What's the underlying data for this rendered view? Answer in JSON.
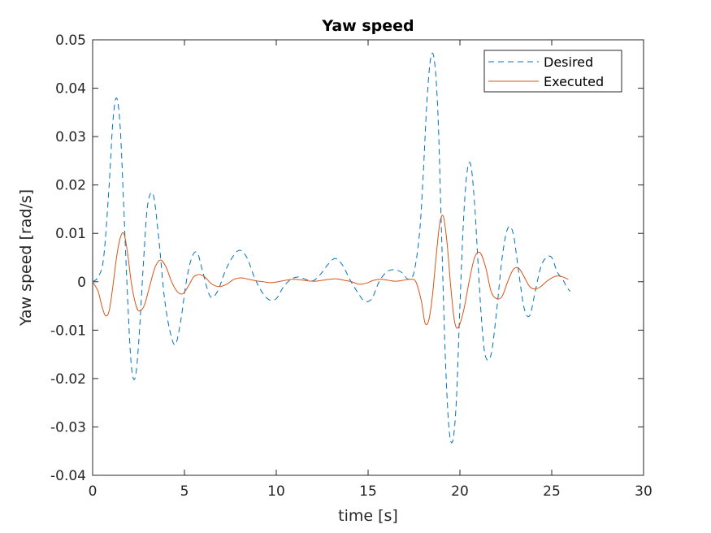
{
  "chart_data": {
    "type": "line",
    "title": "Yaw speed",
    "xlabel": "time [s]",
    "ylabel": "Yaw speed [rad/s]",
    "xlim": [
      0,
      30
    ],
    "ylim": [
      -0.04,
      0.05
    ],
    "xticks": [
      0,
      5,
      10,
      15,
      20,
      25,
      30
    ],
    "xtick_labels": [
      "0",
      "5",
      "10",
      "15",
      "20",
      "25",
      "30"
    ],
    "yticks": [
      -0.04,
      -0.03,
      -0.02,
      -0.01,
      0,
      0.01,
      0.02,
      0.03,
      0.04,
      0.05
    ],
    "ytick_labels": [
      "-0.04",
      "-0.03",
      "-0.02",
      "-0.01",
      "0",
      "0.01",
      "0.02",
      "0.03",
      "0.04",
      "0.05"
    ],
    "grid": false,
    "legend_position": "top-right",
    "series": [
      {
        "name": "Desired",
        "color": "#0072BD",
        "dash": "dashed",
        "x": [
          0,
          0.3,
          0.6,
          0.9,
          1.1,
          1.3,
          1.5,
          1.7,
          1.9,
          2.1,
          2.3,
          2.5,
          2.8,
          3.0,
          3.3,
          3.6,
          3.9,
          4.2,
          4.5,
          4.8,
          5.1,
          5.4,
          5.7,
          6.0,
          6.4,
          6.8,
          7.2,
          7.6,
          8.0,
          8.4,
          8.8,
          9.2,
          9.6,
          10.0,
          10.4,
          10.8,
          11.2,
          11.6,
          12.0,
          12.4,
          12.8,
          13.2,
          13.6,
          14.0,
          14.4,
          14.8,
          15.2,
          15.6,
          16.0,
          16.4,
          16.8,
          17.2,
          17.5,
          17.8,
          18.0,
          18.2,
          18.4,
          18.6,
          18.8,
          19.0,
          19.2,
          19.4,
          19.6,
          19.8,
          20.0,
          20.2,
          20.4,
          20.6,
          20.8,
          21.0,
          21.2,
          21.4,
          21.7,
          22.0,
          22.3,
          22.6,
          22.9,
          23.2,
          23.5,
          23.8,
          24.1,
          24.4,
          24.7,
          25.0,
          25.3,
          25.6,
          25.8,
          26.0
        ],
        "y": [
          0,
          0.001,
          0.005,
          0.02,
          0.033,
          0.038,
          0.032,
          0.015,
          -0.003,
          -0.017,
          -0.02,
          -0.013,
          0.006,
          0.016,
          0.018,
          0.009,
          -0.003,
          -0.01,
          -0.013,
          -0.008,
          0.0,
          0.005,
          0.006,
          0.002,
          -0.003,
          -0.002,
          0.002,
          0.005,
          0.0065,
          0.005,
          0.001,
          -0.002,
          -0.0037,
          -0.0035,
          -0.001,
          0.0005,
          0.001,
          0.0005,
          0.0002,
          0.0015,
          0.0035,
          0.0048,
          0.0035,
          0.0005,
          -0.002,
          -0.004,
          -0.0035,
          0.0,
          0.002,
          0.0025,
          0.002,
          0.0005,
          0.002,
          0.01,
          0.022,
          0.037,
          0.046,
          0.046,
          0.035,
          0.01,
          -0.015,
          -0.03,
          -0.033,
          -0.025,
          -0.005,
          0.013,
          0.023,
          0.024,
          0.016,
          0.003,
          -0.009,
          -0.0155,
          -0.015,
          -0.006,
          0.005,
          0.011,
          0.01,
          0.002,
          -0.0055,
          -0.007,
          -0.002,
          0.003,
          0.005,
          0.005,
          0.002,
          0.0005,
          -0.001,
          -0.002
        ]
      },
      {
        "name": "Executed",
        "color": "#D95319",
        "dash": "solid",
        "x": [
          0,
          0.3,
          0.5,
          0.7,
          0.9,
          1.1,
          1.3,
          1.5,
          1.7,
          1.9,
          2.1,
          2.3,
          2.5,
          2.8,
          3.1,
          3.4,
          3.7,
          4.0,
          4.3,
          4.6,
          4.9,
          5.2,
          5.5,
          5.8,
          6.1,
          6.5,
          6.9,
          7.3,
          7.7,
          8.1,
          8.5,
          8.9,
          9.3,
          9.7,
          10.1,
          10.5,
          10.9,
          11.3,
          11.7,
          12.1,
          12.5,
          12.9,
          13.3,
          13.7,
          14.1,
          14.5,
          14.9,
          15.3,
          15.7,
          16.1,
          16.5,
          16.9,
          17.3,
          17.6,
          17.9,
          18.1,
          18.3,
          18.5,
          18.7,
          18.9,
          19.1,
          19.3,
          19.5,
          19.7,
          19.9,
          20.2,
          20.5,
          20.8,
          21.1,
          21.4,
          21.7,
          22.0,
          22.3,
          22.6,
          22.9,
          23.2,
          23.5,
          23.8,
          24.1,
          24.4,
          24.7,
          25.0,
          25.3,
          25.6,
          25.9
        ],
        "y": [
          0,
          -0.002,
          -0.005,
          -0.007,
          -0.006,
          -0.001,
          0.005,
          0.009,
          0.01,
          0.006,
          0.0,
          -0.004,
          -0.006,
          -0.005,
          -0.001,
          0.003,
          0.0045,
          0.003,
          0.0,
          -0.002,
          -0.0025,
          -0.001,
          0.001,
          0.0015,
          0.001,
          -0.0005,
          -0.001,
          -0.0005,
          0.0005,
          0.0008,
          0.0005,
          0.0002,
          0.0,
          -0.0002,
          0.0,
          0.0003,
          0.0005,
          0.0004,
          0.0002,
          0.0001,
          0.0003,
          0.0005,
          0.0006,
          0.0003,
          0.0,
          -0.0005,
          -0.0003,
          0.0003,
          0.0005,
          0.0003,
          0.0001,
          0.0003,
          0.0005,
          0.0,
          -0.004,
          -0.0085,
          -0.008,
          -0.003,
          0.005,
          0.012,
          0.0135,
          0.008,
          -0.001,
          -0.008,
          -0.0095,
          -0.006,
          0.0,
          0.005,
          0.006,
          0.003,
          -0.002,
          -0.0035,
          -0.003,
          0.0,
          0.0025,
          0.0028,
          0.001,
          -0.001,
          -0.0015,
          -0.001,
          0.0,
          0.0008,
          0.0012,
          0.001,
          0.0005
        ]
      }
    ]
  }
}
